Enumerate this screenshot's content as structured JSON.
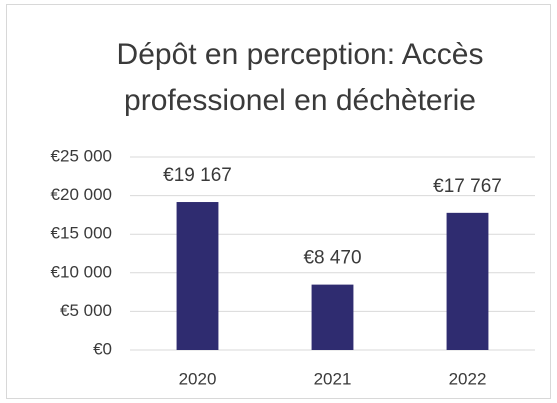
{
  "chart_data": {
    "type": "bar",
    "title": "Dépôt en perception: Accès professionel en déchèterie",
    "categories": [
      "2020",
      "2021",
      "2022"
    ],
    "values": [
      19167,
      8470,
      17767
    ],
    "value_labels": [
      "€19 167",
      "€8 470",
      "€17 767"
    ],
    "color": "#2f2c70",
    "ylim": [
      0,
      25000
    ],
    "yticks": [
      {
        "value": 0,
        "label": "€0"
      },
      {
        "value": 5000,
        "label": "€5 000"
      },
      {
        "value": 10000,
        "label": "€10 000"
      },
      {
        "value": 15000,
        "label": "€15 000"
      },
      {
        "value": 20000,
        "label": "€20 000"
      },
      {
        "value": 25000,
        "label": "€25 000"
      }
    ],
    "grid": true
  }
}
